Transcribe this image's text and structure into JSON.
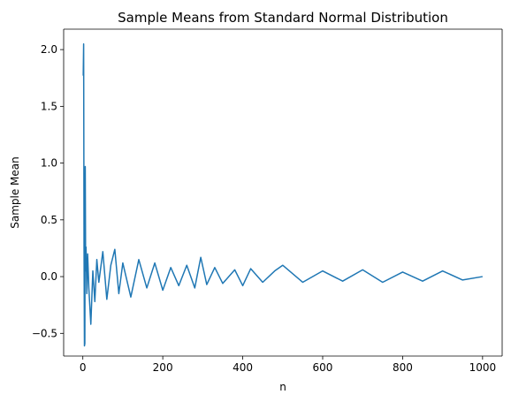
{
  "chart_data": {
    "type": "line",
    "title": "Sample Means from Standard Normal Distribution",
    "xlabel": "n",
    "ylabel": "Sample Mean",
    "xlim": [
      -48,
      1049
    ],
    "ylim": [
      -0.7,
      2.18
    ],
    "x_ticks": [
      0,
      200,
      400,
      600,
      800,
      1000
    ],
    "x_tick_labels": [
      "0",
      "200",
      "400",
      "600",
      "800",
      "1000"
    ],
    "y_ticks": [
      -0.5,
      0.0,
      0.5,
      1.0,
      1.5,
      2.0
    ],
    "y_tick_labels": [
      "−0.5",
      "0.0",
      "0.5",
      "1.0",
      "1.5",
      "2.0"
    ],
    "grid": false,
    "series": [
      {
        "color": "#1f77b4",
        "x": [
          1,
          2,
          3,
          4,
          5,
          6,
          7,
          8,
          10,
          12,
          15,
          20,
          25,
          30,
          35,
          40,
          50,
          60,
          70,
          80,
          90,
          100,
          120,
          140,
          160,
          180,
          200,
          220,
          240,
          260,
          280,
          295,
          310,
          330,
          350,
          380,
          400,
          420,
          450,
          480,
          500,
          550,
          600,
          650,
          700,
          750,
          800,
          850,
          900,
          950,
          1000
        ],
        "y": [
          1.77,
          2.05,
          0.25,
          -0.61,
          -0.59,
          0.97,
          0.05,
          0.26,
          -0.15,
          0.2,
          -0.1,
          -0.42,
          0.05,
          -0.22,
          0.15,
          -0.05,
          0.22,
          -0.2,
          0.1,
          0.24,
          -0.15,
          0.12,
          -0.18,
          0.15,
          -0.1,
          0.12,
          -0.12,
          0.08,
          -0.08,
          0.1,
          -0.1,
          0.17,
          -0.07,
          0.08,
          -0.06,
          0.06,
          -0.08,
          0.07,
          -0.05,
          0.05,
          0.1,
          -0.05,
          0.05,
          -0.04,
          0.06,
          -0.05,
          0.04,
          -0.04,
          0.05,
          -0.03,
          0.0
        ]
      }
    ]
  }
}
